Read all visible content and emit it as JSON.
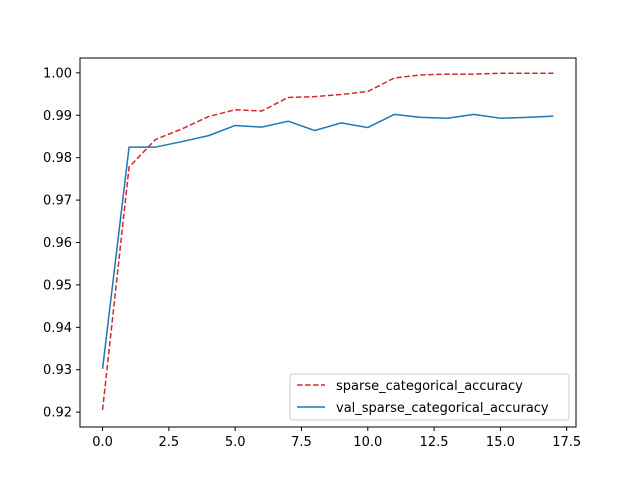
{
  "chart_data": {
    "type": "line",
    "title": "",
    "xlabel": "",
    "ylabel": "",
    "xlim": [
      -0.85,
      17.85
    ],
    "ylim": [
      0.9165,
      1.0035
    ],
    "xticks": [
      0.0,
      2.5,
      5.0,
      7.5,
      10.0,
      12.5,
      15.0,
      17.5
    ],
    "xtick_labels": [
      "0.0",
      "2.5",
      "5.0",
      "7.5",
      "10.0",
      "12.5",
      "15.0",
      "17.5"
    ],
    "yticks": [
      0.92,
      0.93,
      0.94,
      0.95,
      0.96,
      0.97,
      0.98,
      0.99,
      1.0
    ],
    "ytick_labels": [
      "0.92",
      "0.93",
      "0.94",
      "0.95",
      "0.96",
      "0.97",
      "0.98",
      "0.99",
      "1.00"
    ],
    "grid": false,
    "legend_position": "lower-right",
    "x": [
      0,
      1,
      2,
      3,
      4,
      5,
      6,
      7,
      8,
      9,
      10,
      11,
      12,
      13,
      14,
      15,
      16,
      17
    ],
    "series": [
      {
        "name": "sparse_categorical_accuracy",
        "color": "#d62728",
        "style": "dashed",
        "values": [
          0.9205,
          0.9778,
          0.9843,
          0.9868,
          0.9897,
          0.9913,
          0.991,
          0.9942,
          0.9944,
          0.9949,
          0.9956,
          0.9988,
          0.9995,
          0.9997,
          0.9997,
          0.9999,
          0.9999,
          0.9999
        ]
      },
      {
        "name": "val_sparse_categorical_accuracy",
        "color": "#1f77b4",
        "style": "solid",
        "values": [
          0.9302,
          0.9825,
          0.9825,
          0.9838,
          0.9852,
          0.9876,
          0.9872,
          0.9886,
          0.9864,
          0.9882,
          0.9871,
          0.9902,
          0.9895,
          0.9893,
          0.9902,
          0.9893,
          0.9895,
          0.9898
        ]
      }
    ]
  }
}
